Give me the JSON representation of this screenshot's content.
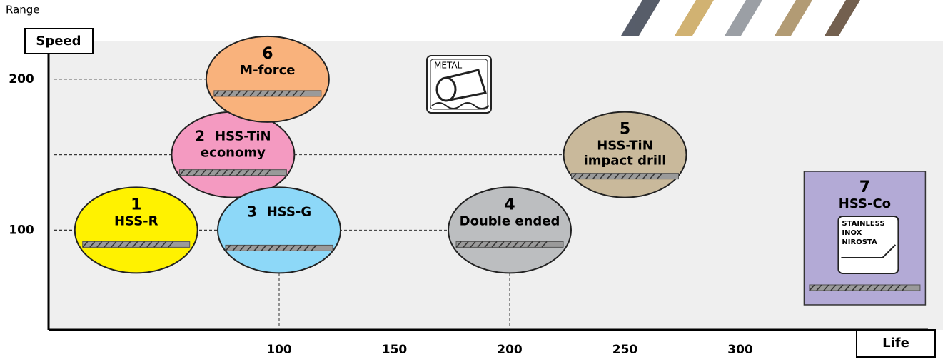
{
  "chart_data": {
    "type": "bubble-map",
    "y_axis_caption": "Range",
    "ylabel": "Speed",
    "xlabel": "Life",
    "xlim": [
      0,
      380
    ],
    "ylim": [
      34,
      225
    ],
    "xticks": [
      100,
      150,
      200,
      250,
      300
    ],
    "yticks": [
      100,
      200
    ],
    "icons": {
      "metal": "METAL",
      "stainless": [
        "STAINLESS",
        "INOX",
        "NIROSTA"
      ]
    },
    "points": [
      {
        "number": "1",
        "label": [
          "HSS-R"
        ],
        "x": 38,
        "y": 100,
        "color": "#fff200"
      },
      {
        "number": "2",
        "label": [
          "HSS-TiN",
          "economy"
        ],
        "x": 80,
        "y": 150,
        "color": "#f49ac1",
        "number_inline": true
      },
      {
        "number": "3",
        "label": [
          "HSS-G"
        ],
        "x": 100,
        "y": 100,
        "color": "#8dd8f8",
        "number_inline": true,
        "vertical_guide": true
      },
      {
        "number": "4",
        "label": [
          "Double ended"
        ],
        "x": 200,
        "y": 100,
        "color": "#bcbec0",
        "vertical_guide": true
      },
      {
        "number": "5",
        "label": [
          "HSS-TiN",
          "impact drill"
        ],
        "x": 250,
        "y": 150,
        "color": "#c9b99b",
        "vertical_guide": true
      },
      {
        "number": "6",
        "label": [
          "M-force"
        ],
        "x": 95,
        "y": 200,
        "color": "#f9b27c"
      },
      {
        "number": "7",
        "label": [
          "HSS-Co"
        ],
        "x": 354,
        "y": 95,
        "color": "#b3aad6",
        "box": true
      }
    ]
  }
}
